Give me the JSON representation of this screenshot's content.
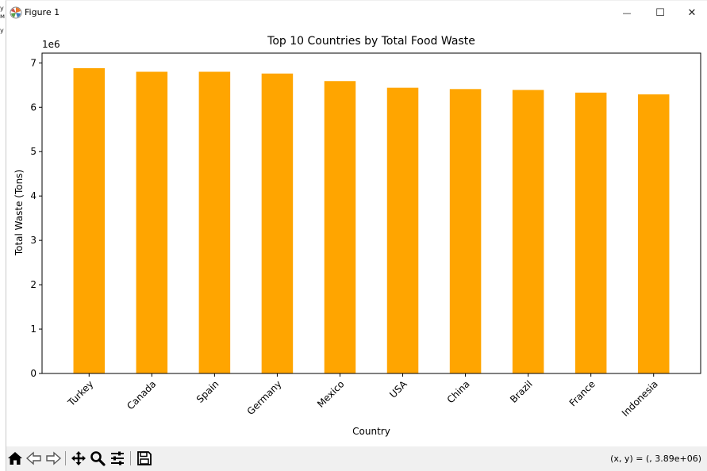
{
  "edge": {
    "line1": "y",
    "line2": "м",
    "line3": "y"
  },
  "window": {
    "title": "Figure 1",
    "minimize_glyph": "—",
    "maximize_glyph": "☐",
    "close_glyph": "✕",
    "icons": [
      "matplotlib-logo-icon",
      "minimize-icon",
      "maximize-icon",
      "close-icon"
    ]
  },
  "toolbar": {
    "icons": [
      "home-icon",
      "back-arrow-icon",
      "forward-arrow-icon",
      "pan-icon",
      "zoom-icon",
      "configure-subplots-icon",
      "save-icon"
    ],
    "coordinate_readout": "(x, y) = (, 3.89e+06)"
  },
  "chart_data": {
    "type": "bar",
    "title": "Top 10 Countries by Total Food Waste",
    "xlabel": "Country",
    "ylabel": "Total Waste (Tons)",
    "offset_label": "1e6",
    "categories": [
      "Turkey",
      "Canada",
      "Spain",
      "Germany",
      "Mexico",
      "USA",
      "China",
      "Brazil",
      "France",
      "Indonesia"
    ],
    "values": [
      6.88,
      6.8,
      6.8,
      6.76,
      6.59,
      6.44,
      6.41,
      6.39,
      6.33,
      6.29
    ],
    "yticks": [
      0,
      1,
      2,
      3,
      4,
      5,
      6,
      7
    ],
    "ylim": [
      0,
      7.22
    ],
    "bar_color": "#FFA500",
    "grid": false,
    "legend": "none"
  }
}
